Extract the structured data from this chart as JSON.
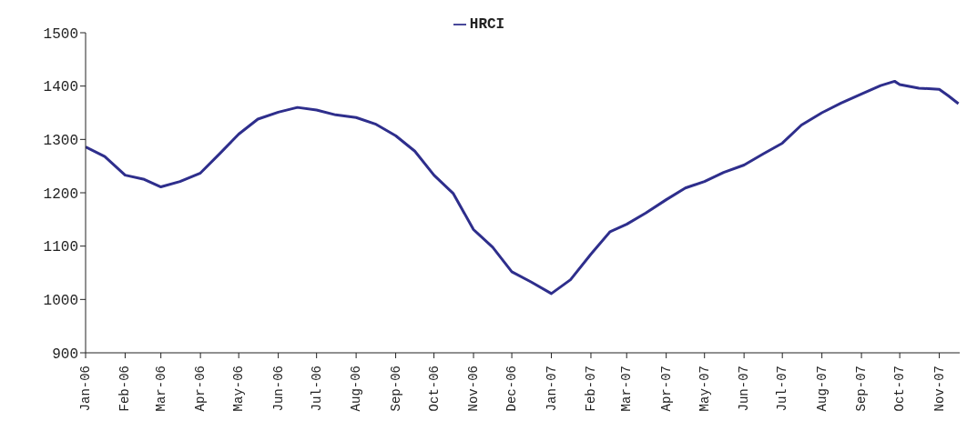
{
  "chart_data": {
    "type": "line",
    "x": [
      "2006-01-01",
      "2006-01-16",
      "2006-02-01",
      "2006-02-16",
      "2006-03-01",
      "2006-03-16",
      "2006-04-01",
      "2006-04-16",
      "2006-05-01",
      "2006-05-16",
      "2006-06-01",
      "2006-06-16",
      "2006-07-01",
      "2006-07-16",
      "2006-08-01",
      "2006-08-16",
      "2006-09-01",
      "2006-09-16",
      "2006-10-01",
      "2006-10-16",
      "2006-11-01",
      "2006-11-16",
      "2006-12-01",
      "2006-12-16",
      "2007-01-01",
      "2007-01-16",
      "2007-02-01",
      "2007-02-16",
      "2007-03-01",
      "2007-03-16",
      "2007-04-01",
      "2007-04-16",
      "2007-05-01",
      "2007-05-16",
      "2007-06-01",
      "2007-06-16",
      "2007-07-01",
      "2007-07-16",
      "2007-08-01",
      "2007-08-16",
      "2007-09-01",
      "2007-09-16",
      "2007-09-27",
      "2007-10-01",
      "2007-10-16",
      "2007-11-01",
      "2007-11-08",
      "2007-11-16"
    ],
    "series": [
      {
        "name": "HRCI",
        "color": "#2e2e8c",
        "values": [
          1286,
          1268,
          1233,
          1225,
          1211,
          1221,
          1237,
          1273,
          1310,
          1338,
          1351,
          1360,
          1355,
          1346,
          1341,
          1329,
          1307,
          1278,
          1233,
          1199,
          1131,
          1098,
          1052,
          1033,
          1011,
          1037,
          1085,
          1127,
          1141,
          1162,
          1187,
          1209,
          1221,
          1238,
          1252,
          1273,
          1293,
          1327,
          1350,
          1368,
          1385,
          1401,
          1409,
          1403,
          1396,
          1394,
          1382,
          1367
        ]
      }
    ],
    "xlim": [
      "2006-01-01",
      "2007-11-17"
    ],
    "xticks": [
      {
        "value": "2006-01",
        "label": "Jan-06"
      },
      {
        "value": "2006-02",
        "label": "Feb-06"
      },
      {
        "value": "2006-03",
        "label": "Mar-06"
      },
      {
        "value": "2006-04",
        "label": "Apr-06"
      },
      {
        "value": "2006-05",
        "label": "May-06"
      },
      {
        "value": "2006-06",
        "label": "Jun-06"
      },
      {
        "value": "2006-07",
        "label": "Jul-06"
      },
      {
        "value": "2006-08",
        "label": "Aug-06"
      },
      {
        "value": "2006-09",
        "label": "Sep-06"
      },
      {
        "value": "2006-10",
        "label": "Oct-06"
      },
      {
        "value": "2006-11",
        "label": "Nov-06"
      },
      {
        "value": "2006-12",
        "label": "Dec-06"
      },
      {
        "value": "2007-01",
        "label": "Jan-07"
      },
      {
        "value": "2007-02",
        "label": "Feb-07"
      },
      {
        "value": "2007-03",
        "label": "Mar-07"
      },
      {
        "value": "2007-04",
        "label": "Apr-07"
      },
      {
        "value": "2007-05",
        "label": "May-07"
      },
      {
        "value": "2007-06",
        "label": "Jun-07"
      },
      {
        "value": "2007-07",
        "label": "Jul-07"
      },
      {
        "value": "2007-08",
        "label": "Aug-07"
      },
      {
        "value": "2007-09",
        "label": "Sep-07"
      },
      {
        "value": "2007-10",
        "label": "Oct-07"
      },
      {
        "value": "2007-11",
        "label": "Nov-07"
      }
    ],
    "ylim": [
      900,
      1500
    ],
    "yticks": [
      900,
      1000,
      1100,
      1200,
      1300,
      1400,
      1500
    ],
    "grid": false,
    "legend": "top",
    "marker": "none",
    "line_style": "solid"
  }
}
